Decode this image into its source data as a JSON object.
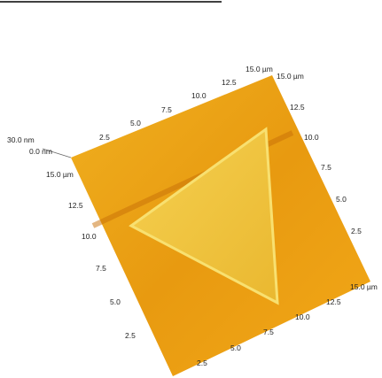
{
  "z_axis": {
    "max": "30.0 nm",
    "min": "0.0 nm"
  },
  "axes": {
    "back": [
      "2.5",
      "5.0",
      "7.5",
      "10.0",
      "12.5",
      "15.0 µm"
    ],
    "right": [
      "15.0 µm",
      "12.5",
      "10.0",
      "7.5",
      "5.0",
      "2.5"
    ],
    "left": [
      "15.0 µm",
      "12.5",
      "10.0",
      "7.5",
      "5.0",
      "2.5"
    ],
    "front": [
      "2.5",
      "5.0",
      "7.5",
      "10.0",
      "12.5",
      "15.0 µm"
    ]
  }
}
